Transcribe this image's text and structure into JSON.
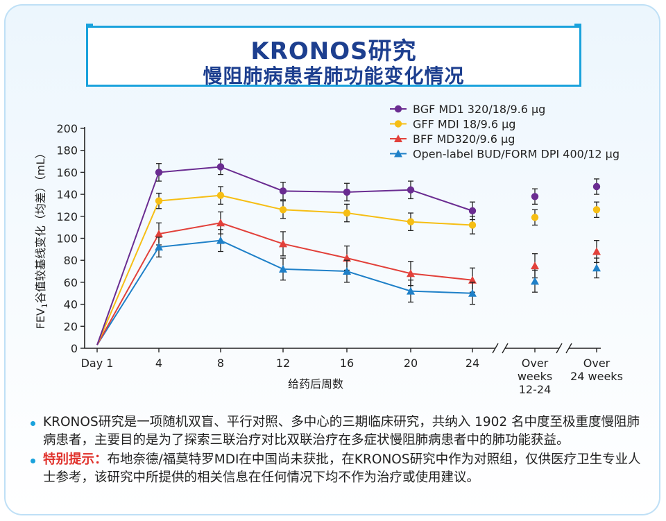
{
  "header": {
    "title_line1": "KRONOS研究",
    "title_line2": "慢阻肺病患者肺功能变化情况"
  },
  "colors": {
    "accent": "#1aa2dc",
    "title": "#1d3f8f",
    "warning": "#e0312b"
  },
  "chart_data": {
    "type": "line",
    "ylabel_prefix": "FEV",
    "ylabel_subscript": "1",
    "ylabel_suffix": "谷值较基线变化（均差）（mL）",
    "xlabel": "给药后周数",
    "ylim": [
      0,
      200
    ],
    "yticks": [
      0,
      20,
      40,
      60,
      80,
      100,
      120,
      140,
      160,
      180,
      200
    ],
    "x_connected_labels": [
      "Day 1",
      "4",
      "8",
      "12",
      "16",
      "20",
      "24"
    ],
    "x_summary_labels": [
      [
        "Over",
        "weeks",
        "12-24"
      ],
      [
        "Over",
        "24 weeks"
      ]
    ],
    "series": [
      {
        "name": "BGF MD1 320/18/9.6 μg",
        "color": "#6a2c91",
        "marker": "circle",
        "values": [
          3,
          160,
          165,
          143,
          142,
          144,
          125
        ],
        "errors": [
          0,
          8,
          7,
          8,
          8,
          8,
          8
        ],
        "summary": [
          138,
          147
        ],
        "summary_errors": [
          7,
          7
        ]
      },
      {
        "name": "GFF MDI 18/9.6 μg",
        "color": "#f6be14",
        "marker": "circle",
        "values": [
          3,
          134,
          139,
          126,
          123,
          115,
          112
        ],
        "errors": [
          0,
          7,
          8,
          8,
          8,
          8,
          8
        ],
        "summary": [
          119,
          126
        ],
        "summary_errors": [
          7,
          7
        ]
      },
      {
        "name": "BFF MD320/9.6 μg",
        "color": "#e2403a",
        "marker": "triangle",
        "values": [
          3,
          104,
          114,
          95,
          82,
          68,
          62
        ],
        "errors": [
          0,
          10,
          10,
          11,
          11,
          11,
          11
        ],
        "summary": [
          75,
          88
        ],
        "summary_errors": [
          11,
          10
        ]
      },
      {
        "name": "Open-label BUD/FORM DPI 400/12 μg",
        "color": "#1f80c8",
        "marker": "triangle",
        "values": [
          3,
          92,
          98,
          72,
          70,
          52,
          50
        ],
        "errors": [
          0,
          9,
          10,
          10,
          10,
          10,
          10
        ],
        "summary": [
          61,
          73
        ],
        "summary_errors": [
          10,
          9
        ]
      }
    ]
  },
  "notes": [
    {
      "highlight": "",
      "text": "KRONOS研究是一项随机双盲、平行对照、多中心的三期临床研究，共纳入 1902 名中度至极重度慢阻肺病患者，主要目的是为了探索三联治疗对比双联治疗在多症状慢阻肺病患者中的肺功能获益。"
    },
    {
      "highlight": "特别提示：",
      "text": "布地奈德/福莫特罗MDI在中国尚未获批，在KRONOS研究中作为对照组，仅供医疗卫生专业人士参考，该研究中所提供的相关信息在任何情况下均不作为治疗或使用建议。"
    }
  ]
}
